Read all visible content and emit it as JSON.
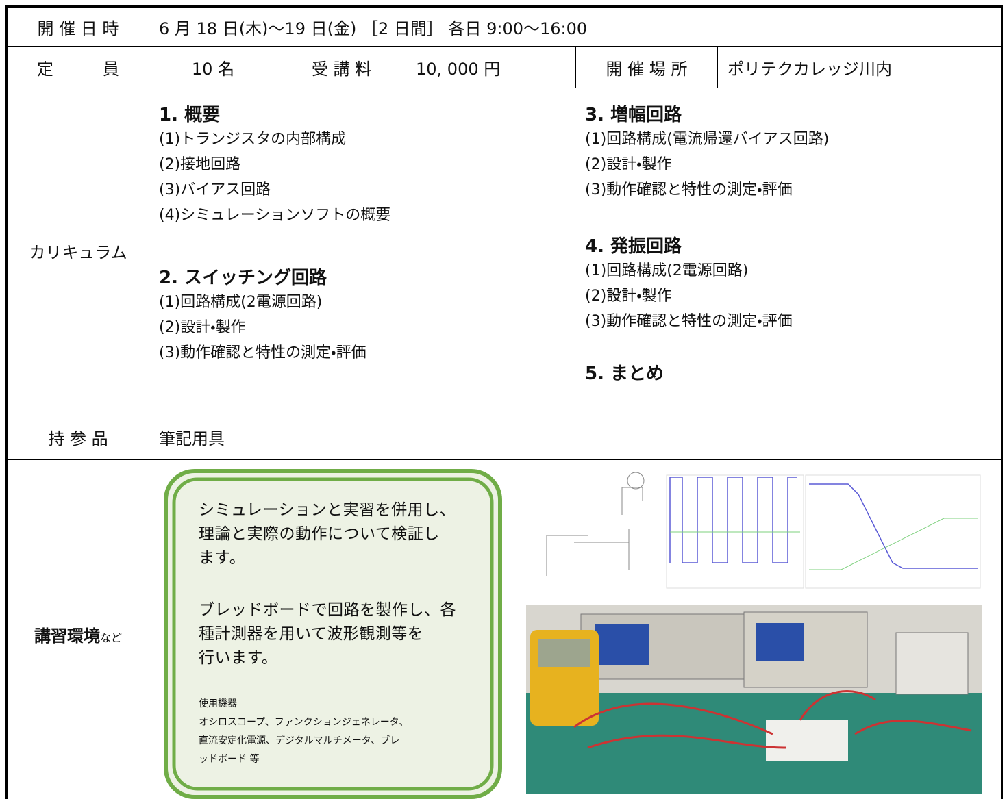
{
  "schedule": {
    "label": "開 催 日 時",
    "value": "6 月 18 日(木)～19 日(金) ［2 日間］ 各日 9:00～16:00"
  },
  "capacity": {
    "label": "定　　　員",
    "value": "10 名"
  },
  "fee": {
    "label": "受 講 料",
    "value": "10, 000 円"
  },
  "venue": {
    "label": "開 催 場 所",
    "value": "ポリテクカレッジ川内"
  },
  "curriculum": {
    "label": "カリキュラム",
    "sections": [
      {
        "heading": "1. 概要",
        "items": [
          "(1)トランジスタの内部構成",
          "(2)接地回路",
          "(3)バイアス回路",
          "(4)シミュレーションソフトの概要"
        ]
      },
      {
        "heading": "2. スイッチング回路",
        "items": [
          "(1)回路構成(2電源回路)",
          "(2)設計・製作",
          "(3)動作確認と特性の測定・評価"
        ]
      },
      {
        "heading": "3. 増幅回路",
        "items": [
          "(1)回路構成(電流帰還バイアス回路)",
          "(2)設計・製作",
          "(3)動作確認と特性の測定・評価"
        ]
      },
      {
        "heading": "4. 発振回路",
        "items": [
          "(1)回路構成(2電源回路)",
          "(2)設計・製作",
          "(3)動作確認と特性の測定・評価"
        ]
      },
      {
        "heading": "5. まとめ",
        "items": []
      }
    ]
  },
  "belongings": {
    "label": "持 参 品",
    "value": "筆記用具"
  },
  "environment": {
    "label": "講習環境",
    "label_suffix": "など",
    "description": [
      [
        "シミュレーションと実習を併用し、",
        "理論と実際の動作について検証し",
        "ます。"
      ],
      [
        "ブレッドボードで回路を製作し、各",
        "種計測器を用いて波形観測等を",
        "行います。"
      ]
    ],
    "equipment_heading": "使用機器",
    "equipment": [
      "オシロスコープ、ファンクションジェネレータ、",
      "直流安定化電源、デジタルマルチメータ、ブレ",
      "ッドボード 等"
    ]
  }
}
